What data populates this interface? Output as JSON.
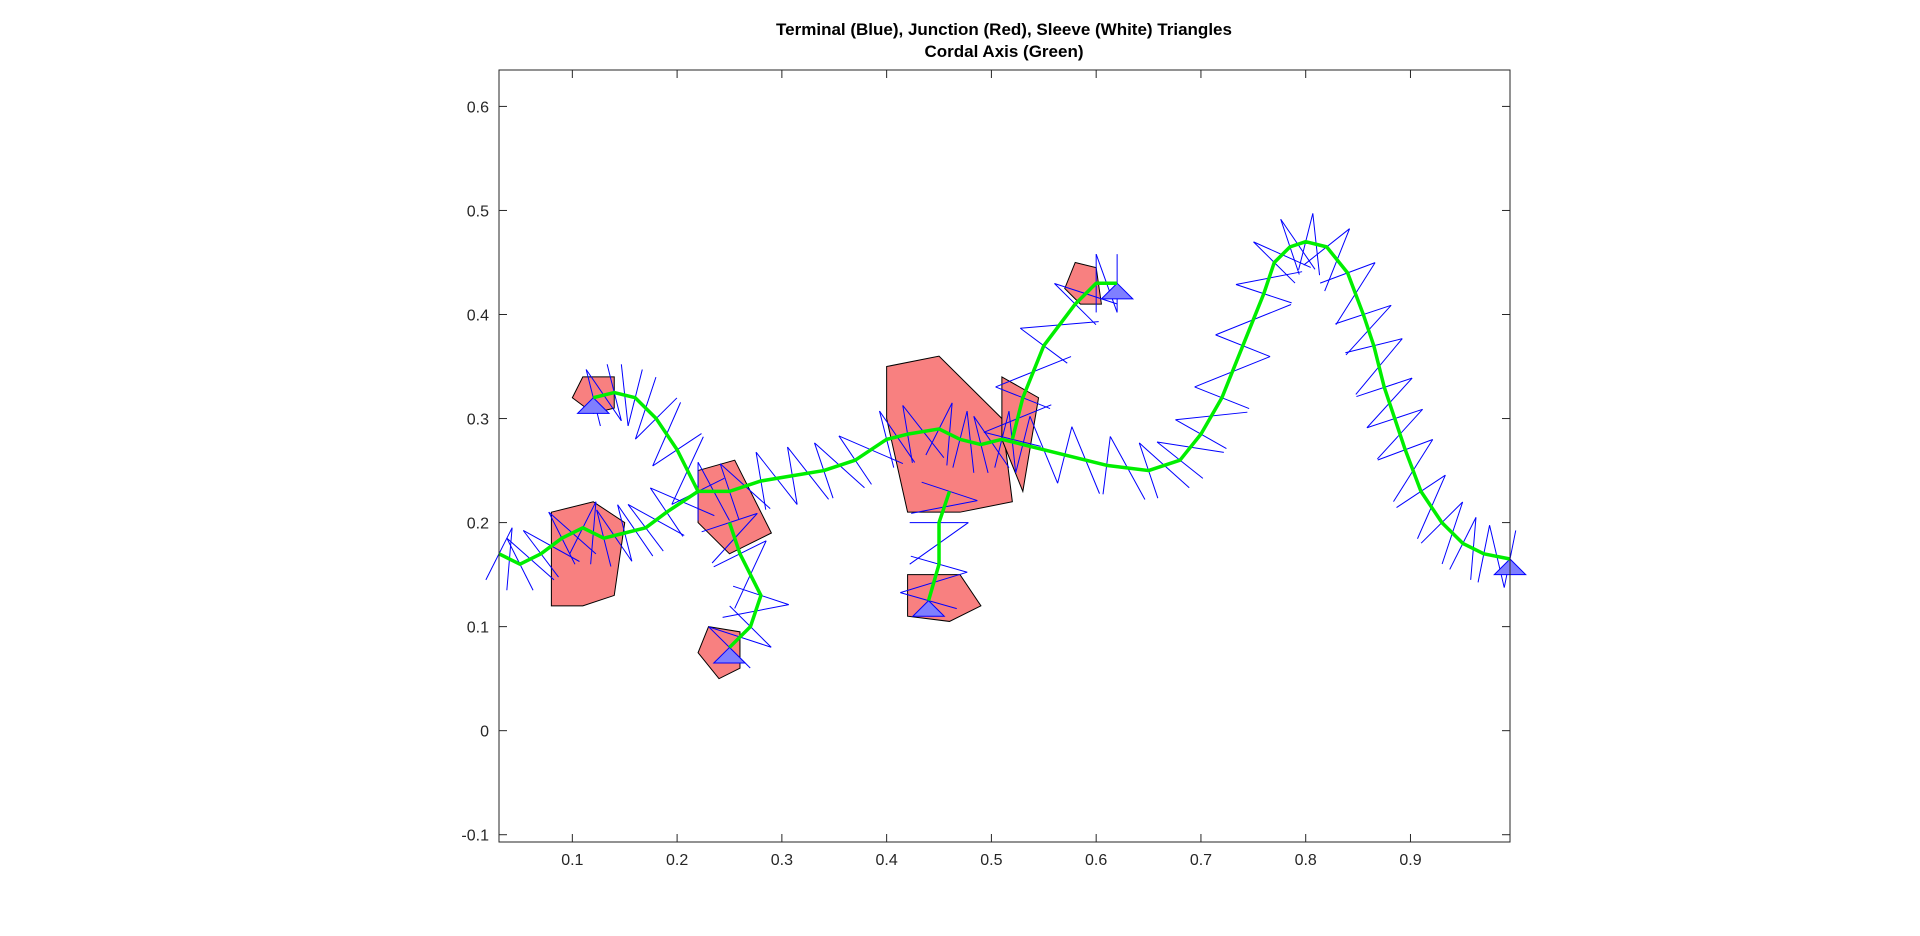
{
  "chart_data": {
    "type": "line",
    "title": [
      "Terminal (Blue), Junction (Red), Sleeve (White) Triangles",
      "Cordal Axis (Green)"
    ],
    "xlabel": "",
    "ylabel": "",
    "xlim": [
      0.03,
      0.995
    ],
    "ylim": [
      -0.107,
      0.635
    ],
    "xticks": [
      "0.1",
      "0.2",
      "0.3",
      "0.4",
      "0.5",
      "0.6",
      "0.7",
      "0.8",
      "0.9"
    ],
    "yticks": [
      "-0.1",
      "0",
      "0.1",
      "0.2",
      "0.3",
      "0.4",
      "0.5",
      "0.6"
    ],
    "grid": false,
    "legend": "none",
    "colors": {
      "terminal": "#7f7fff",
      "junction": "#f88080",
      "sleeve": "#ffffff",
      "mesh_edge": "#0000ff",
      "junction_edge": "#000000",
      "axis": "#00ee00",
      "junction_axis": "#ff0000"
    },
    "series": [
      {
        "role": "chordal-axis-main",
        "x": [
          0.03,
          0.05,
          0.07,
          0.09,
          0.11,
          0.13,
          0.15,
          0.17,
          0.19,
          0.22,
          0.25,
          0.28,
          0.31,
          0.34,
          0.37,
          0.4,
          0.42,
          0.45,
          0.47,
          0.49,
          0.51,
          0.53,
          0.57,
          0.61,
          0.65,
          0.68,
          0.7,
          0.72,
          0.74,
          0.76,
          0.77,
          0.785,
          0.8,
          0.82,
          0.84,
          0.855,
          0.865,
          0.875,
          0.885,
          0.895,
          0.91,
          0.93,
          0.95,
          0.97,
          0.995
        ],
        "y": [
          0.17,
          0.16,
          0.17,
          0.185,
          0.195,
          0.185,
          0.19,
          0.195,
          0.21,
          0.23,
          0.23,
          0.24,
          0.245,
          0.25,
          0.26,
          0.28,
          0.285,
          0.29,
          0.28,
          0.275,
          0.28,
          0.275,
          0.265,
          0.255,
          0.25,
          0.26,
          0.285,
          0.32,
          0.37,
          0.42,
          0.45,
          0.465,
          0.47,
          0.465,
          0.44,
          0.4,
          0.37,
          0.33,
          0.3,
          0.27,
          0.23,
          0.2,
          0.18,
          0.17,
          0.165
        ]
      },
      {
        "role": "chordal-axis-front-leg-upper",
        "x": [
          0.22,
          0.2,
          0.18,
          0.16,
          0.14,
          0.12
        ],
        "y": [
          0.23,
          0.27,
          0.3,
          0.32,
          0.325,
          0.32
        ]
      },
      {
        "role": "chordal-axis-hind-leg-upper",
        "x": [
          0.52,
          0.53,
          0.55,
          0.58,
          0.6,
          0.62
        ],
        "y": [
          0.28,
          0.32,
          0.37,
          0.41,
          0.43,
          0.43
        ]
      },
      {
        "role": "chordal-axis-front-leg-lower",
        "x": [
          0.25,
          0.26,
          0.28,
          0.27,
          0.25
        ],
        "y": [
          0.2,
          0.17,
          0.13,
          0.1,
          0.08
        ]
      },
      {
        "role": "chordal-axis-hind-leg-lower",
        "x": [
          0.46,
          0.45,
          0.45,
          0.44
        ],
        "y": [
          0.23,
          0.2,
          0.16,
          0.125
        ]
      }
    ],
    "junctions": [
      {
        "x": [
          0.08,
          0.12,
          0.15,
          0.14,
          0.11,
          0.08
        ],
        "y": [
          0.21,
          0.22,
          0.2,
          0.13,
          0.12,
          0.12
        ]
      },
      {
        "x": [
          0.22,
          0.255,
          0.29,
          0.25,
          0.22
        ],
        "y": [
          0.25,
          0.26,
          0.19,
          0.17,
          0.2
        ]
      },
      {
        "x": [
          0.4,
          0.45,
          0.51,
          0.52,
          0.47,
          0.42,
          0.4
        ],
        "y": [
          0.35,
          0.36,
          0.3,
          0.22,
          0.21,
          0.21,
          0.3
        ]
      },
      {
        "x": [
          0.51,
          0.545,
          0.53,
          0.51
        ],
        "y": [
          0.34,
          0.32,
          0.23,
          0.28
        ]
      },
      {
        "x": [
          0.42,
          0.47,
          0.49,
          0.46,
          0.42
        ],
        "y": [
          0.15,
          0.15,
          0.12,
          0.105,
          0.11
        ]
      },
      {
        "x": [
          0.11,
          0.14,
          0.14,
          0.12,
          0.1
        ],
        "y": [
          0.34,
          0.34,
          0.31,
          0.305,
          0.32
        ]
      },
      {
        "x": [
          0.23,
          0.26,
          0.26,
          0.24,
          0.22
        ],
        "y": [
          0.1,
          0.095,
          0.06,
          0.05,
          0.075
        ]
      },
      {
        "x": [
          0.58,
          0.6,
          0.605,
          0.585,
          0.57
        ],
        "y": [
          0.45,
          0.445,
          0.41,
          0.41,
          0.425
        ]
      }
    ]
  }
}
